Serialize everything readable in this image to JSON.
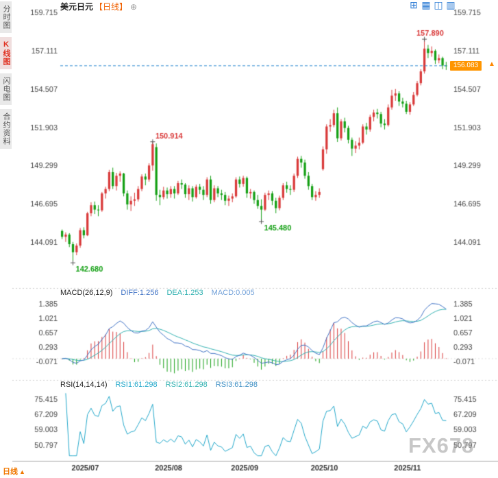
{
  "header": {
    "symbol": "美元日元",
    "period_tag": "【日线】",
    "add_icon": "⊕",
    "layout_icons": [
      "⊞",
      "▦",
      "◫",
      "▥"
    ]
  },
  "sidebar": {
    "items": [
      {
        "label": "分时图",
        "active": false
      },
      {
        "label": "K线图",
        "active": true
      },
      {
        "label": "闪电图",
        "active": false
      },
      {
        "label": "合约资料",
        "active": false
      }
    ]
  },
  "footer": {
    "timeframe_label": "日线",
    "arrow_icon": "▲"
  },
  "watermark": "FX678",
  "price_tag": {
    "value": "156.083",
    "bg_color": "#ff9500",
    "arrow_color": "#ff8800"
  },
  "chart_data": {
    "type": "candlestick",
    "title": "美元日元 日线",
    "x_axis_labels": [
      "2025/07",
      "2025/08",
      "2025/09",
      "2025/10",
      "2025/11"
    ],
    "price_axis_ticks": [
      159.715,
      157.111,
      154.507,
      151.903,
      149.299,
      146.695,
      144.091
    ],
    "current_price": 156.083,
    "current_price_line_color": "#2e8bd0",
    "up_color": "#d93a3a",
    "down_color": "#15a015",
    "axis_text_color": "#444444",
    "annotations": [
      {
        "index": 3,
        "price": 142.68,
        "label": "142.680",
        "color": "#15a015",
        "position": "below"
      },
      {
        "index": 25,
        "price": 150.914,
        "label": "150.914",
        "color": "#d93a3a",
        "position": "above"
      },
      {
        "index": 55,
        "price": 145.48,
        "label": "145.480",
        "color": "#15a015",
        "position": "below"
      },
      {
        "index": 100,
        "price": 157.89,
        "label": "157.890",
        "color": "#d93a3a",
        "position": "above"
      }
    ],
    "candles": [
      [
        "2025-06-26",
        144.85,
        144.95,
        144.3,
        144.45
      ],
      [
        "2025-06-27",
        144.45,
        144.75,
        144.1,
        144.6
      ],
      [
        "2025-06-30",
        144.6,
        144.7,
        143.75,
        143.95
      ],
      [
        "2025-07-01",
        143.95,
        144.1,
        142.68,
        143.4
      ],
      [
        "2025-07-02",
        143.4,
        144.0,
        143.2,
        143.85
      ],
      [
        "2025-07-03",
        143.85,
        145.05,
        143.7,
        144.9
      ],
      [
        "2025-07-04",
        144.9,
        145.1,
        144.35,
        144.55
      ],
      [
        "2025-07-07",
        144.55,
        146.15,
        144.5,
        146.05
      ],
      [
        "2025-07-08",
        146.05,
        146.8,
        145.85,
        146.6
      ],
      [
        "2025-07-09",
        146.6,
        146.85,
        146.0,
        146.3
      ],
      [
        "2025-07-10",
        146.3,
        146.6,
        145.85,
        146.25
      ],
      [
        "2025-07-11",
        146.25,
        147.5,
        146.15,
        147.4
      ],
      [
        "2025-07-14",
        147.4,
        147.85,
        147.05,
        147.7
      ],
      [
        "2025-07-15",
        147.7,
        149.0,
        147.55,
        148.85
      ],
      [
        "2025-07-16",
        148.85,
        149.15,
        147.7,
        147.9
      ],
      [
        "2025-07-17",
        147.9,
        148.8,
        147.6,
        148.6
      ],
      [
        "2025-07-18",
        148.6,
        148.9,
        148.2,
        148.75
      ],
      [
        "2025-07-21",
        148.75,
        148.8,
        147.2,
        147.4
      ],
      [
        "2025-07-22",
        147.4,
        147.6,
        146.3,
        146.65
      ],
      [
        "2025-07-23",
        146.65,
        147.2,
        146.2,
        146.9
      ],
      [
        "2025-07-24",
        146.9,
        147.45,
        146.55,
        147.0
      ],
      [
        "2025-07-25",
        147.0,
        147.9,
        146.85,
        147.7
      ],
      [
        "2025-07-28",
        147.7,
        148.7,
        147.55,
        148.55
      ],
      [
        "2025-07-29",
        148.55,
        148.75,
        147.95,
        148.35
      ],
      [
        "2025-07-30",
        148.35,
        149.45,
        148.2,
        149.3
      ],
      [
        "2025-07-31",
        149.3,
        150.914,
        148.95,
        150.75
      ],
      [
        "2025-08-01",
        150.55,
        150.8,
        146.9,
        147.3
      ],
      [
        "2025-08-04",
        147.3,
        147.65,
        146.6,
        147.15
      ],
      [
        "2025-08-05",
        147.15,
        147.85,
        147.0,
        147.6
      ],
      [
        "2025-08-06",
        147.6,
        147.8,
        147.05,
        147.35
      ],
      [
        "2025-08-07",
        147.35,
        147.9,
        147.1,
        147.7
      ],
      [
        "2025-08-08",
        147.7,
        147.9,
        147.05,
        147.4
      ],
      [
        "2025-08-11",
        147.4,
        148.25,
        147.3,
        148.1
      ],
      [
        "2025-08-12",
        148.1,
        148.35,
        147.7,
        148.0
      ],
      [
        "2025-08-13",
        148.0,
        148.1,
        147.1,
        147.35
      ],
      [
        "2025-08-14",
        147.35,
        147.95,
        146.95,
        147.75
      ],
      [
        "2025-08-15",
        147.75,
        147.9,
        146.85,
        147.15
      ],
      [
        "2025-08-18",
        147.15,
        148.0,
        147.05,
        147.85
      ],
      [
        "2025-08-19",
        147.85,
        148.05,
        147.35,
        147.65
      ],
      [
        "2025-08-20",
        147.65,
        147.9,
        146.95,
        147.3
      ],
      [
        "2025-08-21",
        147.3,
        148.5,
        147.15,
        148.35
      ],
      [
        "2025-08-22",
        148.35,
        148.6,
        146.7,
        146.95
      ],
      [
        "2025-08-25",
        146.95,
        147.95,
        146.8,
        147.75
      ],
      [
        "2025-08-26",
        147.75,
        147.9,
        147.15,
        147.4
      ],
      [
        "2025-08-27",
        147.4,
        147.65,
        146.95,
        147.3
      ],
      [
        "2025-08-28",
        147.3,
        147.5,
        146.6,
        146.9
      ],
      [
        "2025-08-29",
        146.9,
        147.25,
        146.55,
        147.05
      ],
      [
        "2025-09-01",
        147.05,
        147.4,
        146.8,
        147.2
      ],
      [
        "2025-09-02",
        147.2,
        148.5,
        147.1,
        148.35
      ],
      [
        "2025-09-03",
        148.35,
        148.55,
        147.8,
        148.05
      ],
      [
        "2025-09-04",
        148.05,
        148.6,
        147.85,
        148.45
      ],
      [
        "2025-09-05",
        148.45,
        148.55,
        147.1,
        147.4
      ],
      [
        "2025-09-08",
        147.4,
        147.7,
        147.05,
        147.5
      ],
      [
        "2025-09-09",
        147.5,
        147.6,
        146.7,
        146.95
      ],
      [
        "2025-09-10",
        146.95,
        147.3,
        146.35,
        146.55
      ],
      [
        "2025-09-11",
        146.55,
        147.0,
        145.48,
        146.3
      ],
      [
        "2025-09-12",
        146.3,
        147.45,
        146.2,
        147.3
      ],
      [
        "2025-09-15",
        147.3,
        147.6,
        146.95,
        147.4
      ],
      [
        "2025-09-16",
        147.4,
        147.55,
        146.6,
        146.9
      ],
      [
        "2025-09-17",
        146.9,
        147.1,
        146.05,
        146.4
      ],
      [
        "2025-09-18",
        146.4,
        147.25,
        146.25,
        147.1
      ],
      [
        "2025-09-19",
        147.1,
        148.1,
        146.95,
        147.95
      ],
      [
        "2025-09-22",
        147.95,
        148.2,
        147.45,
        147.7
      ],
      [
        "2025-09-23",
        147.7,
        147.95,
        147.3,
        147.65
      ],
      [
        "2025-09-24",
        147.65,
        148.75,
        147.5,
        148.6
      ],
      [
        "2025-09-25",
        148.6,
        149.9,
        148.45,
        149.75
      ],
      [
        "2025-09-26",
        149.75,
        149.95,
        149.15,
        149.5
      ],
      [
        "2025-09-29",
        149.5,
        149.7,
        148.4,
        148.6
      ],
      [
        "2025-09-30",
        148.6,
        148.85,
        147.65,
        147.9
      ],
      [
        "2025-10-01",
        147.9,
        148.05,
        146.95,
        147.15
      ],
      [
        "2025-10-02",
        147.15,
        147.55,
        146.9,
        147.3
      ],
      [
        "2025-10-03",
        147.3,
        147.75,
        147.1,
        147.5
      ],
      [
        "2025-10-06",
        149.05,
        150.6,
        148.95,
        150.4
      ],
      [
        "2025-10-07",
        150.4,
        152.1,
        150.1,
        151.95
      ],
      [
        "2025-10-08",
        151.95,
        152.45,
        151.6,
        152.05
      ],
      [
        "2025-10-09",
        152.05,
        153.1,
        151.9,
        152.85
      ],
      [
        "2025-10-10",
        152.85,
        153.25,
        150.9,
        151.15
      ],
      [
        "2025-10-13",
        151.15,
        152.45,
        151.0,
        152.3
      ],
      [
        "2025-10-14",
        152.3,
        152.55,
        151.55,
        151.85
      ],
      [
        "2025-10-15",
        151.85,
        152.0,
        150.8,
        151.05
      ],
      [
        "2025-10-16",
        151.05,
        151.2,
        149.95,
        150.45
      ],
      [
        "2025-10-17",
        150.45,
        150.95,
        150.15,
        150.65
      ],
      [
        "2025-10-20",
        150.65,
        151.2,
        150.4,
        150.85
      ],
      [
        "2025-10-21",
        150.85,
        152.1,
        150.75,
        151.95
      ],
      [
        "2025-10-22",
        151.95,
        152.2,
        151.4,
        151.75
      ],
      [
        "2025-10-23",
        151.75,
        152.75,
        151.6,
        152.6
      ],
      [
        "2025-10-24",
        152.6,
        153.1,
        152.3,
        152.9
      ],
      [
        "2025-10-27",
        152.9,
        153.15,
        152.5,
        152.8
      ],
      [
        "2025-10-28",
        152.8,
        152.95,
        151.9,
        152.15
      ],
      [
        "2025-10-29",
        152.15,
        152.45,
        151.75,
        152.05
      ],
      [
        "2025-10-30",
        152.05,
        153.45,
        151.95,
        153.25
      ],
      [
        "2025-10-31",
        153.25,
        154.45,
        153.1,
        154.05
      ],
      [
        "2025-11-03",
        154.05,
        154.5,
        153.7,
        154.2
      ],
      [
        "2025-11-04",
        154.2,
        154.35,
        153.35,
        153.65
      ],
      [
        "2025-11-05",
        153.65,
        153.9,
        153.25,
        153.5
      ],
      [
        "2025-11-06",
        153.5,
        153.7,
        152.8,
        152.95
      ],
      [
        "2025-11-07",
        152.95,
        153.6,
        152.75,
        153.45
      ],
      [
        "2025-11-10",
        153.45,
        154.3,
        153.35,
        154.1
      ],
      [
        "2025-11-11",
        154.1,
        155.05,
        154.0,
        154.9
      ],
      [
        "2025-11-12",
        154.9,
        155.85,
        154.75,
        155.7
      ],
      [
        "2025-11-13",
        155.7,
        157.89,
        155.55,
        157.25
      ],
      [
        "2025-11-14",
        157.25,
        157.5,
        156.6,
        156.95
      ],
      [
        "2025-11-17",
        156.95,
        157.4,
        156.7,
        157.1
      ],
      [
        "2025-11-18",
        157.1,
        157.2,
        156.2,
        156.45
      ],
      [
        "2025-11-19",
        156.45,
        156.85,
        156.25,
        156.6
      ],
      [
        "2025-11-20",
        156.6,
        156.7,
        155.85,
        156.1
      ],
      [
        "2025-11-21",
        156.1,
        156.35,
        155.8,
        156.083
      ]
    ],
    "macd": {
      "title": "MACD(26,12,9)",
      "diff_label": "DIFF:1.256",
      "dea_label": "DEA:1.253",
      "macd_label": "MACD:0.005",
      "diff": 1.256,
      "dea": 1.253,
      "macd": 0.005,
      "ticks": [
        1.385,
        1.021,
        0.657,
        0.293,
        -0.071
      ],
      "diff_color": "#3e71c4",
      "dea_color": "#2fb0b0",
      "macd_label_color": "#6f9fd8",
      "hist_up_color": "#d93a3a",
      "hist_down_color": "#15a015"
    },
    "rsi": {
      "title": "RSI(14,14,14)",
      "rsi1_label": "RSI1:61.298",
      "rsi2_label": "RSI2:61.298",
      "rsi3_label": "RSI3:61.298",
      "rsi1": 61.298,
      "rsi2": 61.298,
      "rsi3": 61.298,
      "ticks": [
        75.415,
        67.209,
        59.003,
        50.797
      ],
      "line_color": "#1fa6c9",
      "rsi1_color": "#1fa6c9",
      "rsi2_color": "#2fb0b0",
      "rsi3_color": "#3e8fc4"
    }
  }
}
